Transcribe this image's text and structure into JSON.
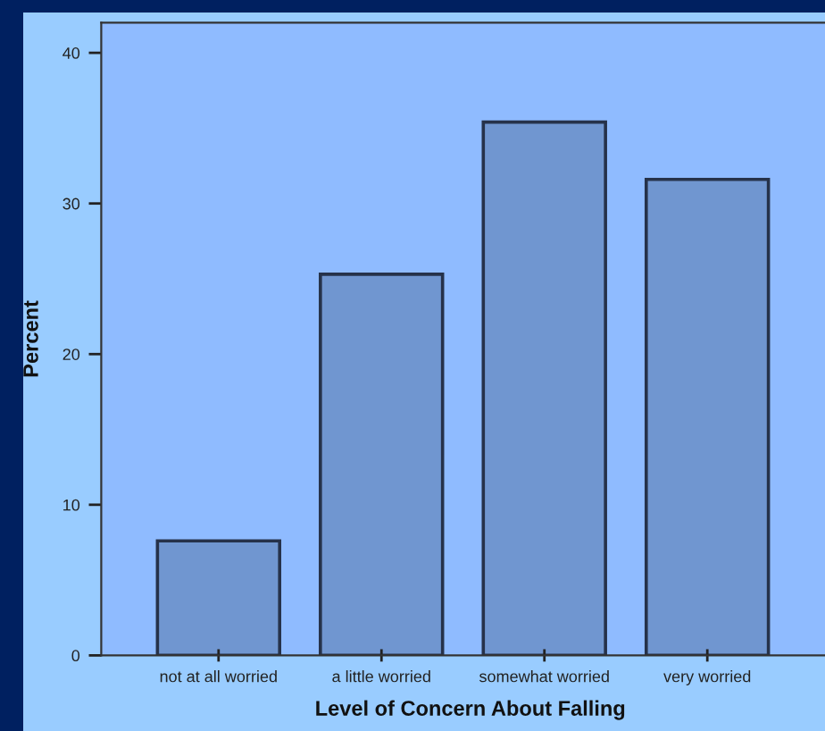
{
  "chart_data": {
    "type": "bar",
    "xlabel": "Level of Concern About Falling",
    "ylabel": "Percent",
    "categories": [
      "not at all worried",
      "a little worried",
      "somewhat worried",
      "very worried"
    ],
    "values": [
      7.6,
      25.3,
      35.4,
      31.6
    ],
    "color": "#7096d0",
    "ylim": [
      0,
      42
    ],
    "yticks": [
      0,
      10,
      20,
      30,
      40
    ],
    "grid": false
  }
}
